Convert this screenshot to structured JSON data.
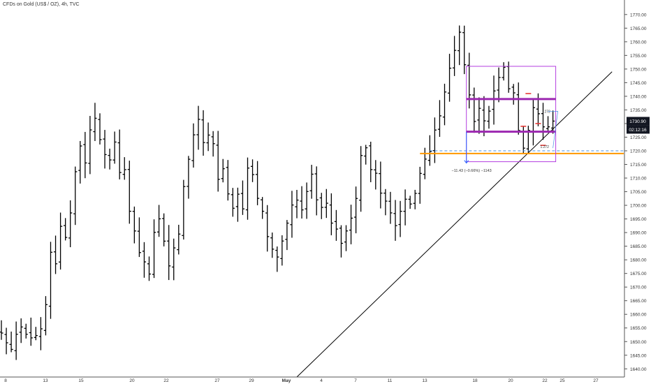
{
  "header": {
    "title": "CFDs on Gold (US$ / OZ), 4h, TVC"
  },
  "price_tags": {
    "last": "1730.90",
    "countdown": "02:12:16"
  },
  "colors": {
    "bars": "#000000",
    "rectangle": "#b43ee0",
    "level_thick": "#9c27b0",
    "support": "#ff9800",
    "dashed": "#4a90e2",
    "trendline": "#000000",
    "tag_bg": "#131722",
    "red_mark": "#e53935"
  },
  "annotations": {
    "measure": "−11.43 (−0.66%) −1143",
    "fib_top": "272",
    "fib_bottom": "1.272"
  },
  "chart_data": {
    "type": "ohlc",
    "title": "CFDs on Gold (US$ / OZ), 4h, TVC",
    "xlabel": "",
    "ylabel": "",
    "ylim": [
      1637,
      1772
    ],
    "y_ticks": [
      1640,
      1645,
      1650,
      1655,
      1660,
      1665,
      1670,
      1675,
      1680,
      1685,
      1690,
      1695,
      1700,
      1705,
      1710,
      1715,
      1720,
      1725,
      1730,
      1735,
      1740,
      1745,
      1750,
      1755,
      1760,
      1765,
      1770
    ],
    "x_ticks": [
      "8",
      "13",
      "15",
      "20",
      "22",
      "27",
      "29",
      "May",
      "4",
      "7",
      "11",
      "13",
      "18",
      "20",
      "22",
      "25",
      "27"
    ],
    "price_path": [
      [
        0,
        1652
      ],
      [
        2,
        1648
      ],
      [
        4,
        1656
      ],
      [
        6,
        1650
      ],
      [
        8,
        1655
      ],
      [
        9,
        1665
      ],
      [
        10,
        1684
      ],
      [
        11,
        1680
      ],
      [
        12,
        1693
      ],
      [
        13,
        1688
      ],
      [
        14,
        1696
      ],
      [
        15,
        1712
      ],
      [
        16,
        1722
      ],
      [
        17,
        1715
      ],
      [
        18,
        1727
      ],
      [
        19,
        1733
      ],
      [
        20,
        1725
      ],
      [
        21,
        1720
      ],
      [
        22,
        1718
      ],
      [
        23,
        1724
      ],
      [
        24,
        1713
      ],
      [
        25,
        1714
      ],
      [
        26,
        1699
      ],
      [
        27,
        1690
      ],
      [
        28,
        1684
      ],
      [
        29,
        1680
      ],
      [
        30,
        1675
      ],
      [
        31,
        1690
      ],
      [
        32,
        1694
      ],
      [
        33,
        1688
      ],
      [
        34,
        1677
      ],
      [
        35,
        1684
      ],
      [
        36,
        1690
      ],
      [
        37,
        1708
      ],
      [
        38,
        1716
      ],
      [
        39,
        1727
      ],
      [
        40,
        1732
      ],
      [
        41,
        1724
      ],
      [
        42,
        1726
      ],
      [
        43,
        1722
      ],
      [
        44,
        1710
      ],
      [
        45,
        1712
      ],
      [
        46,
        1703
      ],
      [
        47,
        1698
      ],
      [
        48,
        1705
      ],
      [
        49,
        1700
      ],
      [
        50,
        1713
      ],
      [
        51,
        1712
      ],
      [
        52,
        1702
      ],
      [
        53,
        1699
      ],
      [
        54,
        1690
      ],
      [
        55,
        1684
      ],
      [
        56,
        1682
      ],
      [
        57,
        1687
      ],
      [
        58,
        1694
      ],
      [
        59,
        1700
      ],
      [
        60,
        1702
      ],
      [
        61,
        1699
      ],
      [
        62,
        1706
      ],
      [
        63,
        1712
      ],
      [
        64,
        1703
      ],
      [
        65,
        1699
      ],
      [
        66,
        1700
      ],
      [
        67,
        1694
      ],
      [
        68,
        1690
      ],
      [
        69,
        1686
      ],
      [
        70,
        1690
      ],
      [
        71,
        1694
      ],
      [
        72,
        1703
      ],
      [
        73,
        1718
      ],
      [
        74,
        1720
      ],
      [
        75,
        1714
      ],
      [
        76,
        1712
      ],
      [
        77,
        1705
      ],
      [
        78,
        1701
      ],
      [
        79,
        1697
      ],
      [
        80,
        1694
      ],
      [
        81,
        1698
      ],
      [
        82,
        1702
      ],
      [
        83,
        1700
      ],
      [
        84,
        1705
      ],
      [
        85,
        1713
      ],
      [
        86,
        1716
      ],
      [
        87,
        1721
      ],
      [
        88,
        1727
      ],
      [
        89,
        1733
      ],
      [
        90,
        1741
      ],
      [
        91,
        1750
      ],
      [
        92,
        1758
      ],
      [
        93,
        1764
      ],
      [
        94,
        1752
      ],
      [
        95,
        1740
      ],
      [
        96,
        1732
      ],
      [
        97,
        1736
      ],
      [
        98,
        1730
      ],
      [
        99,
        1736
      ],
      [
        100,
        1742
      ],
      [
        101,
        1748
      ],
      [
        102,
        1750
      ],
      [
        103,
        1744
      ],
      [
        104,
        1740
      ],
      [
        105,
        1728
      ],
      [
        106,
        1720
      ],
      [
        107,
        1726
      ],
      [
        108,
        1735
      ],
      [
        109,
        1733
      ],
      [
        110,
        1728
      ],
      [
        111,
        1730
      ],
      [
        112,
        1730.9
      ]
    ],
    "lines": {
      "rectangle": {
        "x_from": 94,
        "x_to": 112,
        "price_top": 1751,
        "price_bottom": 1716
      },
      "thick_level_upper": 1739,
      "thick_level_lower": 1727,
      "support_level": 1719,
      "dashed_level": 1720,
      "trendline": {
        "x1": 60,
        "y1": 1637,
        "x2": 124,
        "y2": 1749
      }
    },
    "last_price": 1730.9,
    "grid": false,
    "legend": "none"
  }
}
